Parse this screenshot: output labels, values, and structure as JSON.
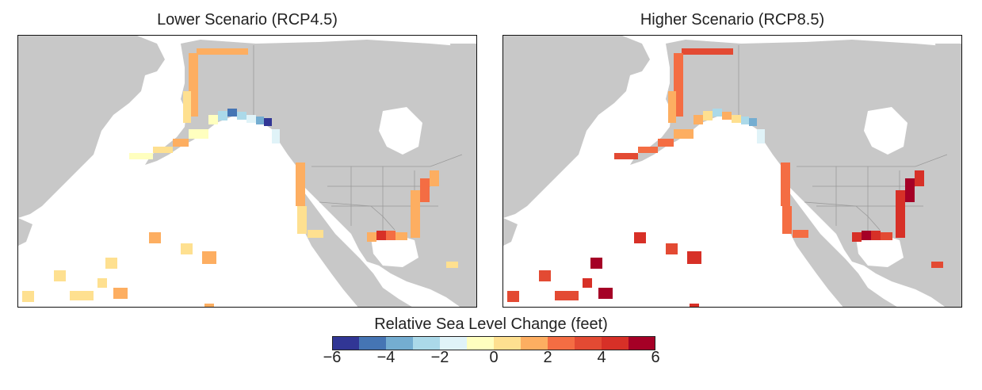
{
  "panels": [
    {
      "title": "Lower Scenario (RCP4.5)"
    },
    {
      "title": "Higher Scenario (RCP8.5)"
    }
  ],
  "legend": {
    "title": "Relative Sea Level Change (feet)",
    "ticks": [
      "−6",
      "−4",
      "−2",
      "0",
      "2",
      "4",
      "6"
    ],
    "colors": [
      "#313695",
      "#4575b4",
      "#74add1",
      "#abd9e9",
      "#e0f3f8",
      "#ffffbf",
      "#fee090",
      "#fdae61",
      "#f46d43",
      "#e34a33",
      "#d73027",
      "#a50026"
    ]
  },
  "map_colors": {
    "land": "#c8c8c8",
    "ocean": "#ffffff",
    "border": "#999999"
  }
}
